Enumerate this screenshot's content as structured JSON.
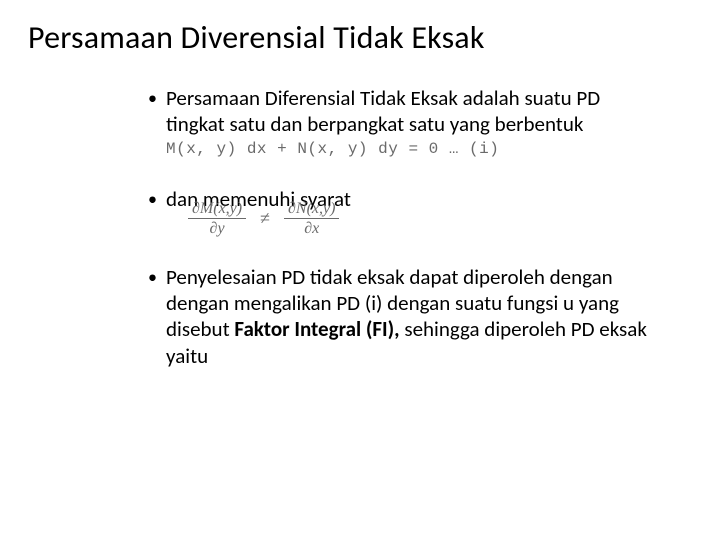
{
  "slide": {
    "title": "Persamaan Diverensial Tidak Eksak",
    "title_fontsize": 32,
    "title_color": "#000000",
    "background_color": "#ffffff",
    "body_fontsize": 21,
    "body_color": "#000000",
    "equation_color": "#6a6a6a",
    "equation_font": "Courier New",
    "fraction_font": "Times New Roman",
    "bullets": [
      {
        "text": "Persamaan Diferensial Tidak Eksak adalah suatu PD tingkat satu dan berpangkat satu yang berbentuk",
        "equation": "M(x, y) dx + N(x, y) dy = 0 … (i)"
      },
      {
        "text": "dan memenuhi syarat",
        "fraction": {
          "left_num": "∂M(x,y)",
          "left_den": "∂y",
          "op": "≠",
          "right_num": "∂N(x,y)",
          "right_den": "∂x"
        }
      },
      {
        "text_parts": {
          "pre": "Penyelesaian PD tidak eksak dapat diperoleh dengan dengan mengalikan PD (i) dengan suatu fungsi u yang disebut ",
          "bold": "Faktor Integral (FI),",
          "post": " sehingga diperoleh PD eksak yaitu"
        }
      }
    ]
  }
}
